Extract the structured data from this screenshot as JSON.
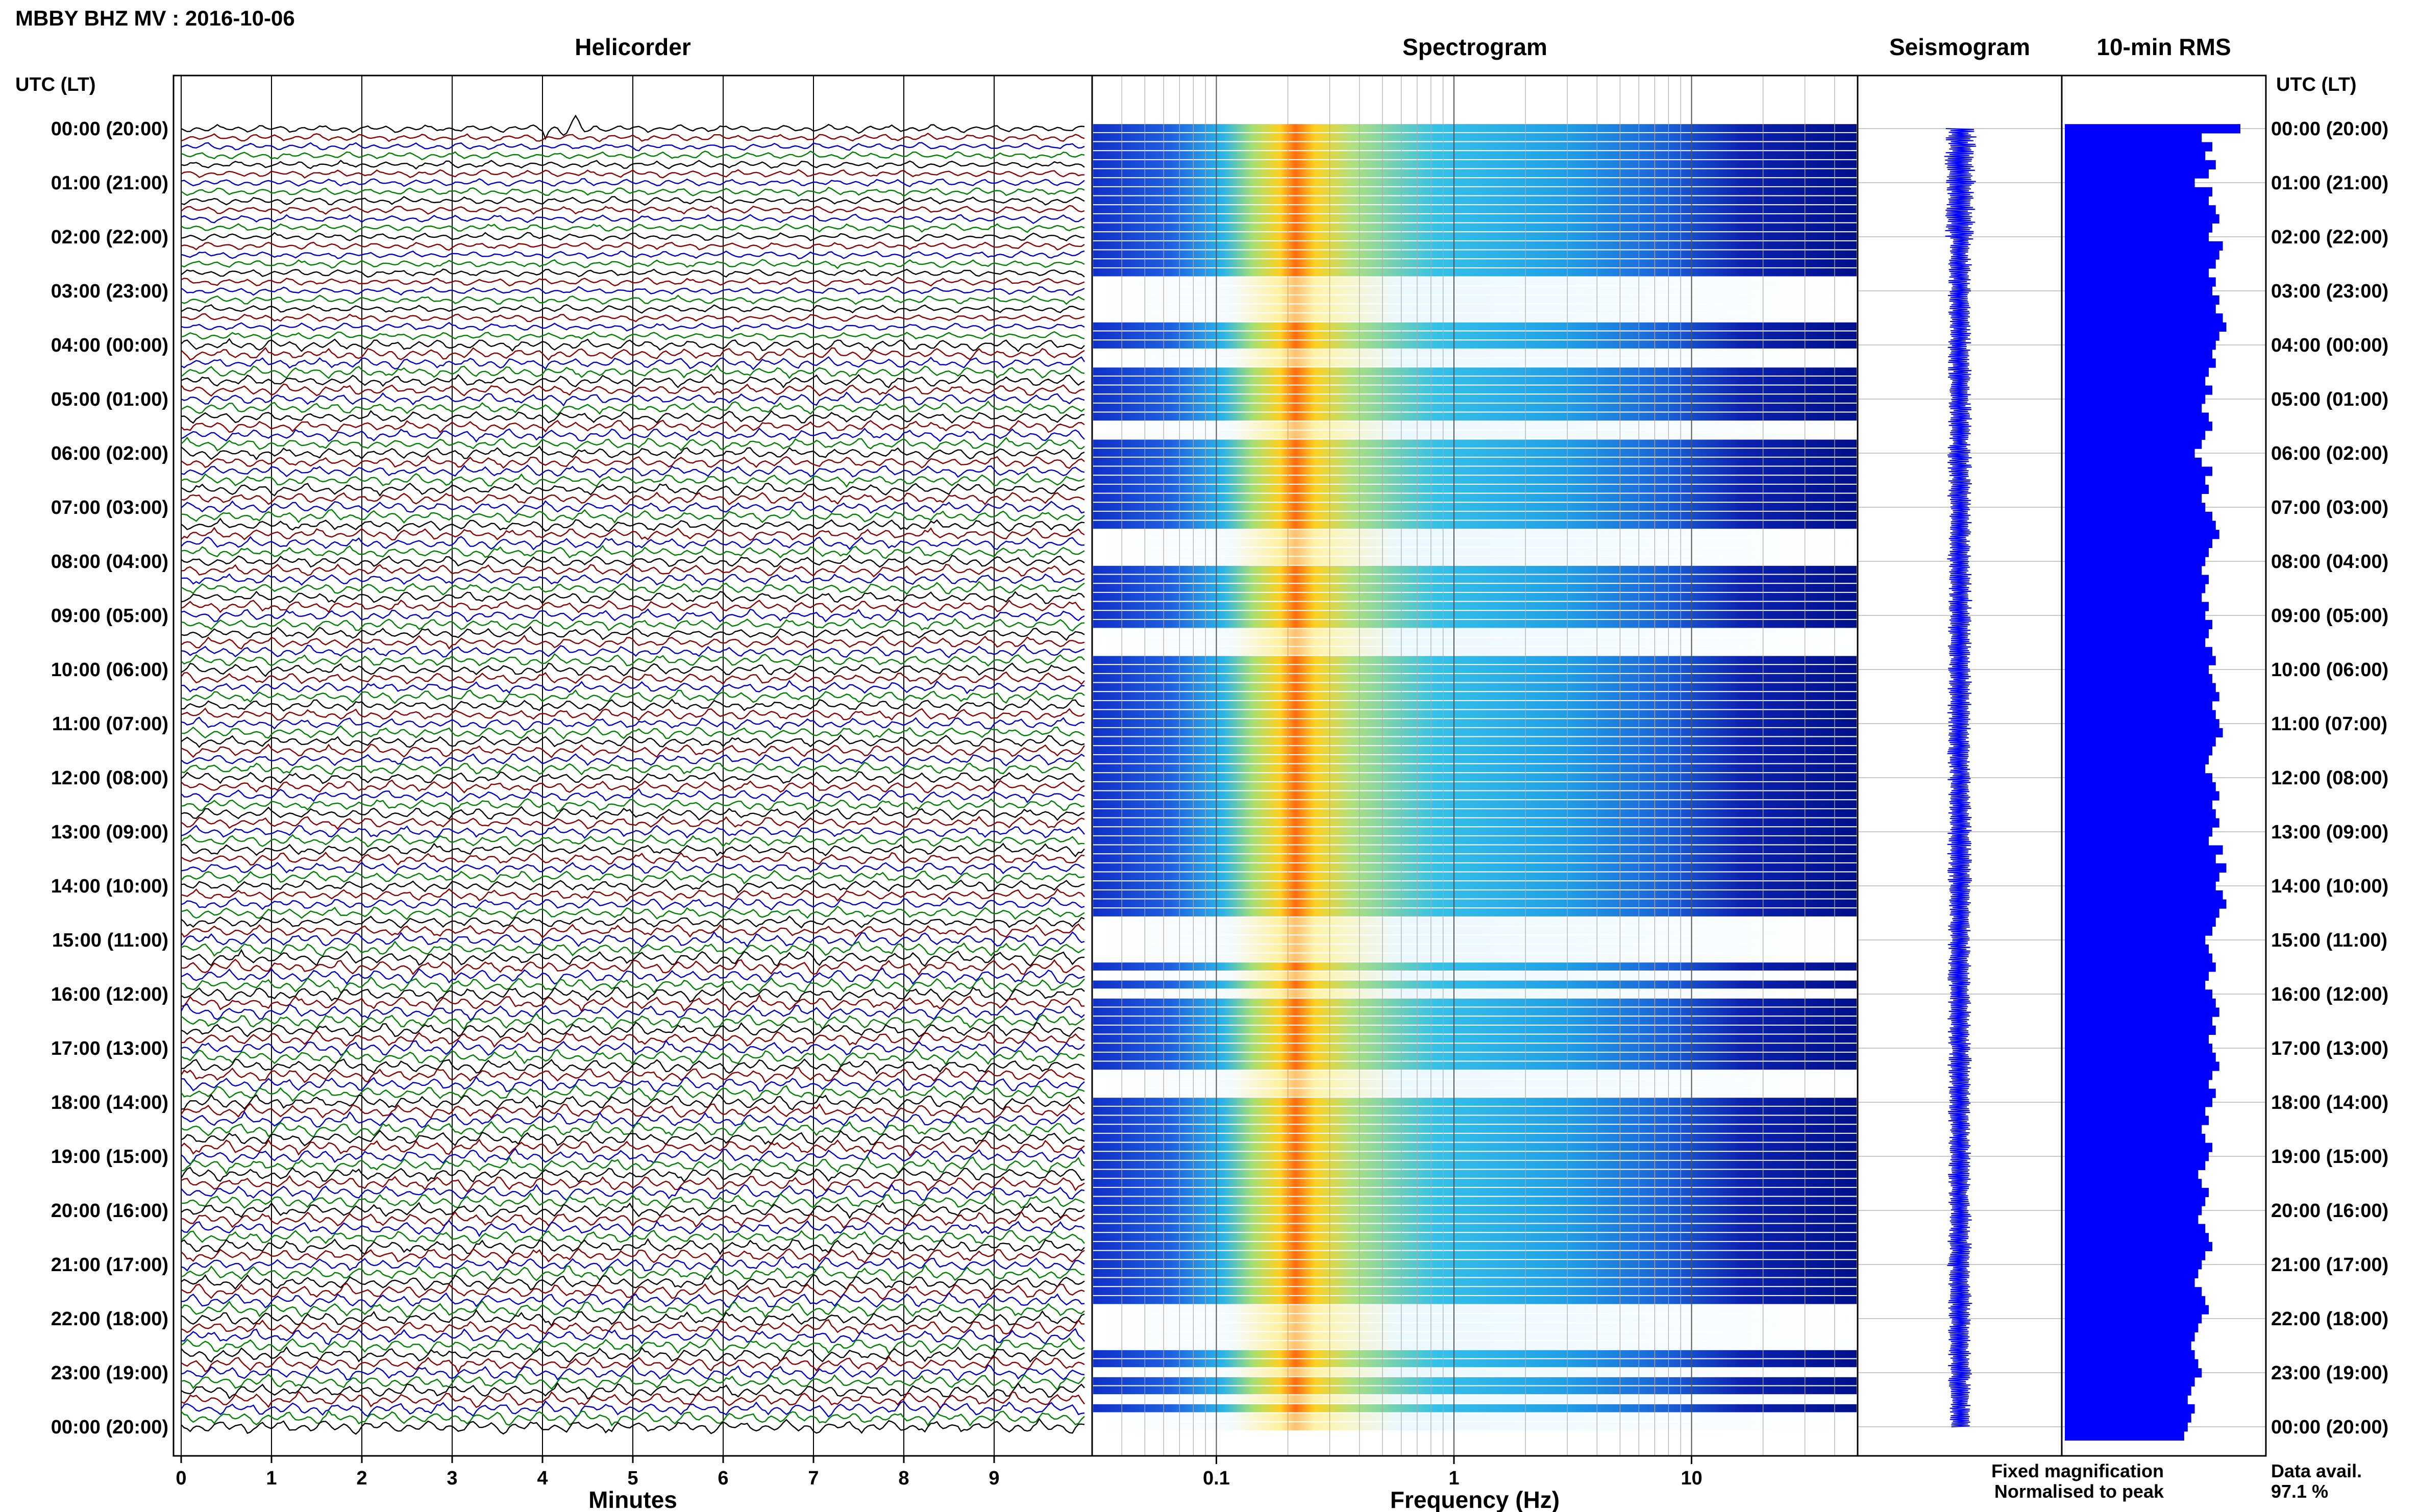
{
  "header": {
    "station_title": "MBBY BHZ MV : 2016-10-06"
  },
  "chart_data": [
    {
      "type": "line",
      "title": "Helicorder",
      "xlabel": "Minutes",
      "ylabel": "UTC (LT)",
      "x_ticks": [
        "0",
        "1",
        "2",
        "3",
        "4",
        "5",
        "6",
        "7",
        "8",
        "9"
      ],
      "xlim": [
        0,
        10
      ],
      "trace_colors": [
        "#000000",
        "#8b0000",
        "#0000cd",
        "#008000"
      ],
      "traces_per_hour": 6,
      "time_labels": [
        "00:00 (20:00)",
        "01:00 (21:00)",
        "02:00 (22:00)",
        "03:00 (23:00)",
        "04:00 (00:00)",
        "05:00 (01:00)",
        "06:00 (02:00)",
        "07:00 (03:00)",
        "08:00 (04:00)",
        "09:00 (05:00)",
        "10:00 (06:00)",
        "11:00 (07:00)",
        "12:00 (08:00)",
        "13:00 (09:00)",
        "14:00 (10:00)",
        "15:00 (11:00)",
        "16:00 (12:00)",
        "17:00 (13:00)",
        "18:00 (14:00)",
        "19:00 (15:00)",
        "20:00 (16:00)",
        "21:00 (17:00)",
        "22:00 (18:00)",
        "23:00 (19:00)",
        "00:00 (20:00)"
      ]
    },
    {
      "type": "heatmap",
      "title": "Spectrogram",
      "xlabel": "Frequency (Hz)",
      "x_scale": "log",
      "x_ticks": [
        "0.1",
        "1",
        "10"
      ],
      "xlim": [
        0.03,
        50
      ],
      "peak_band_hz": [
        0.2,
        0.3
      ],
      "colormap": "jet"
    },
    {
      "type": "line",
      "title": "Seismogram",
      "orientation": "vertical",
      "color": "#0000ff"
    },
    {
      "type": "bar",
      "title": "10-min RMS",
      "orientation": "horizontal",
      "color": "#0000ff",
      "values": [
        1.0,
        0.78,
        0.84,
        0.8,
        0.86,
        0.82,
        0.74,
        0.84,
        0.82,
        0.86,
        0.88,
        0.84,
        0.82,
        0.9,
        0.88,
        0.86,
        0.82,
        0.86,
        0.84,
        0.88,
        0.86,
        0.9,
        0.92,
        0.88,
        0.86,
        0.84,
        0.86,
        0.82,
        0.8,
        0.84,
        0.8,
        0.78,
        0.82,
        0.84,
        0.8,
        0.78,
        0.74,
        0.78,
        0.84,
        0.8,
        0.82,
        0.78,
        0.8,
        0.84,
        0.86,
        0.88,
        0.84,
        0.82,
        0.8,
        0.78,
        0.82,
        0.8,
        0.78,
        0.82,
        0.8,
        0.84,
        0.82,
        0.8,
        0.84,
        0.86,
        0.82,
        0.84,
        0.86,
        0.88,
        0.84,
        0.86,
        0.88,
        0.9,
        0.86,
        0.84,
        0.82,
        0.8,
        0.84,
        0.86,
        0.88,
        0.84,
        0.86,
        0.88,
        0.84,
        0.82,
        0.9,
        0.86,
        0.92,
        0.88,
        0.86,
        0.9,
        0.92,
        0.88,
        0.86,
        0.84,
        0.8,
        0.82,
        0.84,
        0.86,
        0.82,
        0.8,
        0.84,
        0.86,
        0.88,
        0.84,
        0.86,
        0.82,
        0.84,
        0.86,
        0.88,
        0.84,
        0.82,
        0.86,
        0.84,
        0.8,
        0.82,
        0.78,
        0.8,
        0.84,
        0.82,
        0.8,
        0.76,
        0.78,
        0.82,
        0.8,
        0.78,
        0.76,
        0.8,
        0.82,
        0.84,
        0.8,
        0.78,
        0.76,
        0.74,
        0.78,
        0.8,
        0.82,
        0.78,
        0.76,
        0.74,
        0.72,
        0.74,
        0.76,
        0.78,
        0.74,
        0.72,
        0.7,
        0.74,
        0.72,
        0.7,
        0.68
      ]
    }
  ],
  "legend": {
    "fixed": "Fixed magnification",
    "fixed_color": "#0000ff",
    "normalised": "Normalised to peak",
    "normalised_color": "#ff0000"
  },
  "availability": {
    "label": "Data avail.",
    "value": "97.1 %"
  }
}
